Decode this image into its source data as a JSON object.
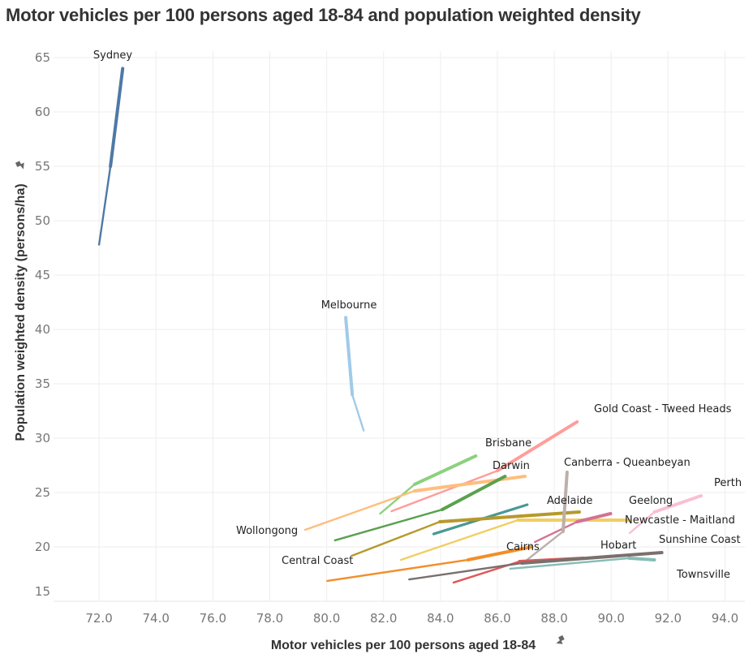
{
  "chart_data": {
    "type": "line",
    "title": "Motor vehicles per 100 persons aged 18-84 and population weighted density",
    "xlabel": "Motor vehicles per 100 persons aged 18-84",
    "ylabel": "Population weighted density (persons/ha)",
    "xlim": [
      70.4,
      94.7
    ],
    "ylim": [
      15,
      65.6
    ],
    "xticks": [
      "72.0",
      "74.0",
      "76.0",
      "78.0",
      "80.0",
      "82.0",
      "84.0",
      "86.0",
      "88.0",
      "90.0",
      "92.0",
      "94.0"
    ],
    "xtick_values": [
      72,
      74,
      76,
      78,
      80,
      82,
      84,
      86,
      88,
      90,
      92,
      94
    ],
    "yticks": [
      "15",
      "20",
      "25",
      "30",
      "35",
      "40",
      "45",
      "50",
      "55",
      "60",
      "65"
    ],
    "ytick_values": [
      15,
      20,
      25,
      30,
      35,
      40,
      45,
      50,
      55,
      60,
      65
    ],
    "grid": true,
    "legend": "none (direct labels)",
    "axis_pin_icon": "pin-icon",
    "series": [
      {
        "name": "Sydney",
        "color": "#4e79a7",
        "label_at": "end-above",
        "points": [
          [
            72.0,
            47.8
          ],
          [
            72.4,
            55.0
          ],
          [
            72.83,
            64.0
          ]
        ]
      },
      {
        "name": "Melbourne",
        "color": "#a0cbe8",
        "label_at": "start-above",
        "points": [
          [
            81.3,
            30.7
          ],
          [
            80.9,
            34.0
          ],
          [
            80.67,
            41.1
          ]
        ]
      },
      {
        "name": "Brisbane",
        "color": "#8cd17d",
        "label_at": "end-above",
        "points": [
          [
            81.88,
            23.06
          ],
          [
            83.09,
            25.75
          ],
          [
            85.24,
            28.36
          ]
        ]
      },
      {
        "name": "Gold Coast - Tweed Heads",
        "color": "#ff9d9a",
        "label_at": "end-above-right",
        "points": [
          [
            82.28,
            23.28
          ],
          [
            86.0,
            27.0
          ],
          [
            88.8,
            31.5
          ]
        ]
      },
      {
        "name": "Wollongong",
        "color": "#ffbe7d",
        "label_at": "start-left",
        "points": [
          [
            79.24,
            21.57
          ],
          [
            83.09,
            25.15
          ],
          [
            86.97,
            26.49
          ]
        ]
      },
      {
        "name": "Darwin",
        "color": "#59a14f",
        "label_at": "end-above",
        "points": [
          [
            80.29,
            20.6
          ],
          [
            84.06,
            23.43
          ],
          [
            86.27,
            26.49
          ]
        ]
      },
      {
        "name": "Adelaide",
        "color": "#499894",
        "label_at": "end-right",
        "points": [
          [
            83.76,
            21.19
          ],
          [
            87.05,
            23.88
          ]
        ]
      },
      {
        "name": "Central Coast",
        "color": "#b6992d",
        "label_at": "start-left-below",
        "points": [
          [
            80.88,
            19.18
          ],
          [
            83.98,
            22.31
          ],
          [
            88.88,
            23.21
          ]
        ]
      },
      {
        "name": "Newcastle - Maitland",
        "color": "#f1ce63",
        "label_at": "end-right",
        "points": [
          [
            82.61,
            18.81
          ],
          [
            86.72,
            22.46
          ],
          [
            90.63,
            22.46
          ]
        ]
      },
      {
        "name": "Geelong",
        "color": "#d37295",
        "label_at": "end-above",
        "points": [
          [
            87.32,
            20.45
          ],
          [
            88.8,
            22.31
          ],
          [
            89.98,
            23.06
          ]
        ]
      },
      {
        "name": "Canberra - Queanbeyan",
        "color": "#bab0ac",
        "label_at": "end-above-right",
        "points": [
          [
            86.86,
            18.43
          ],
          [
            88.31,
            21.42
          ],
          [
            88.45,
            26.87
          ]
        ]
      },
      {
        "name": "Cairns",
        "color": "#f28e2b",
        "label_at": "end-left",
        "points": [
          [
            80.02,
            16.87
          ],
          [
            84.97,
            18.81
          ],
          [
            87.21,
            20.0
          ]
        ]
      },
      {
        "name": "Hobart",
        "color": "#e15759",
        "label_at": "end-above",
        "points": [
          [
            84.46,
            16.72
          ],
          [
            86.78,
            18.66
          ],
          [
            89.01,
            18.96
          ]
        ]
      },
      {
        "name": "Sunshine Coast",
        "color": "#79706e",
        "label_at": "end-above",
        "points": [
          [
            82.9,
            17.01
          ],
          [
            86.86,
            18.51
          ],
          [
            91.78,
            19.48
          ]
        ]
      },
      {
        "name": "Townsville",
        "color": "#86bcb6",
        "label_at": "end-below",
        "points": [
          [
            86.45,
            17.99
          ],
          [
            90.63,
            18.96
          ],
          [
            91.52,
            18.81
          ]
        ]
      },
      {
        "name": "Perth",
        "color": "#fabfd2",
        "label_at": "end-above",
        "points": [
          [
            90.65,
            21.27
          ],
          [
            91.52,
            23.21
          ],
          [
            93.16,
            24.7
          ]
        ]
      }
    ]
  }
}
